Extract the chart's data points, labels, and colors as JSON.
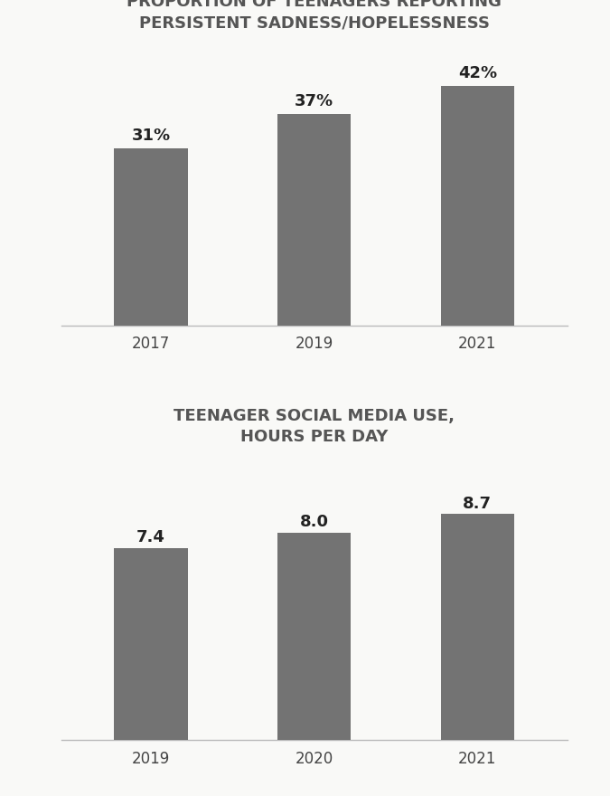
{
  "chart1": {
    "title": "PROPORTION OF TEENAGERS REPORTING\nPERSISTENT SADNESS/HOPELESSNESS",
    "categories": [
      "2017",
      "2019",
      "2021"
    ],
    "values": [
      31,
      37,
      42
    ],
    "labels": [
      "31%",
      "37%",
      "42%"
    ],
    "ylim": [
      0,
      50
    ]
  },
  "chart2": {
    "title": "TEENAGER SOCIAL MEDIA USE,\nHOURS PER DAY",
    "categories": [
      "2019",
      "2020",
      "2021"
    ],
    "values": [
      7.4,
      8.0,
      8.7
    ],
    "labels": [
      "7.4",
      "8.0",
      "8.7"
    ],
    "ylim": [
      0,
      11
    ]
  },
  "background_color": "#f9f9f7",
  "bar_color": "#737373",
  "title_fontsize": 13,
  "label_fontsize": 13,
  "tick_fontsize": 12
}
